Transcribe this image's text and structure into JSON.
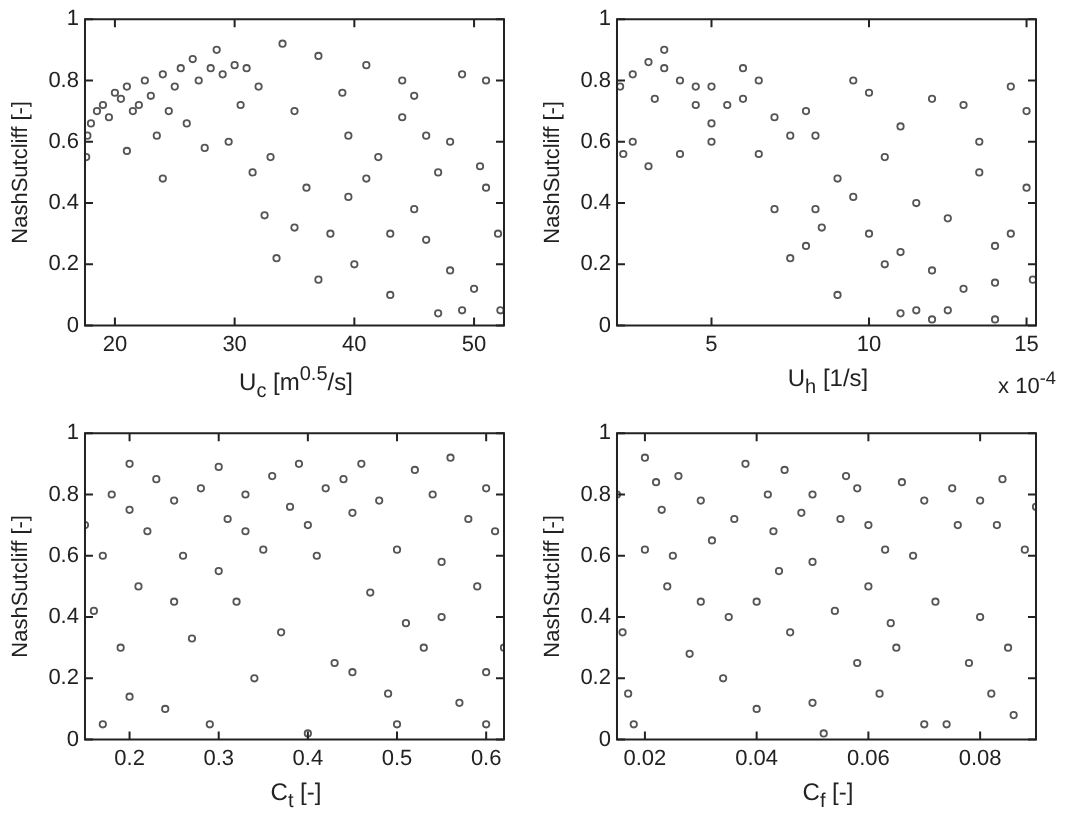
{
  "chart_data": [
    {
      "type": "scatter",
      "xlabel": "U$_{c}$ [m$^{0.5}$/s]",
      "ylabel": "NashSutcliff [-]",
      "xlim": [
        17.5,
        52.5
      ],
      "xticks": [
        20,
        30,
        40,
        50
      ],
      "ylim": [
        0,
        1
      ],
      "yticks": [
        0,
        0.2,
        0.4,
        0.6,
        0.8,
        1
      ],
      "grid": false,
      "legend": false,
      "marker": "circle",
      "series": [
        {
          "color": "#555555",
          "x": [
            17.6,
            17.7,
            18,
            18.5,
            19,
            19.5,
            20,
            20.5,
            21,
            21.5,
            22,
            22.5,
            23,
            23.5,
            24,
            24.5,
            25,
            25.5,
            26,
            26.5,
            27,
            27.5,
            28,
            28.5,
            29,
            29.5,
            30,
            30.5,
            31,
            31.5,
            32,
            32.5,
            33,
            33.5,
            34,
            35,
            36,
            37,
            38,
            39,
            39.5,
            39.5,
            40,
            41,
            42,
            43,
            44,
            45,
            46,
            47,
            48,
            49,
            50,
            51,
            52,
            21,
            24,
            44,
            48,
            50.5,
            35,
            37,
            41,
            43,
            45,
            47,
            49,
            51,
            52.2,
            46
          ],
          "values": [
            0.55,
            0.62,
            0.66,
            0.7,
            0.72,
            0.68,
            0.76,
            0.74,
            0.78,
            0.7,
            0.72,
            0.8,
            0.75,
            0.62,
            0.82,
            0.7,
            0.78,
            0.84,
            0.66,
            0.87,
            0.8,
            0.58,
            0.84,
            0.9,
            0.82,
            0.6,
            0.85,
            0.72,
            0.84,
            0.5,
            0.78,
            0.36,
            0.55,
            0.22,
            0.92,
            0.7,
            0.45,
            0.88,
            0.3,
            0.76,
            0.62,
            0.42,
            0.2,
            0.85,
            0.55,
            0.1,
            0.68,
            0.38,
            0.28,
            0.04,
            0.6,
            0.82,
            0.12,
            0.45,
            0.3,
            0.57,
            0.48,
            0.8,
            0.18,
            0.52,
            0.32,
            0.15,
            0.48,
            0.3,
            0.75,
            0.5,
            0.05,
            0.8,
            0.05,
            0.62
          ]
        }
      ]
    },
    {
      "type": "scatter",
      "xlabel": "U$_{h}$ [1/s]",
      "ylabel": "NashSutcliff [-]",
      "annotations": [
        "x 10$^{-4}$"
      ],
      "xlim": [
        2,
        15.3
      ],
      "xticks": [
        5,
        10,
        15
      ],
      "ylim": [
        0,
        1
      ],
      "yticks": [
        0,
        0.2,
        0.4,
        0.6,
        0.8,
        1
      ],
      "grid": false,
      "legend": false,
      "marker": "circle",
      "series": [
        {
          "color": "#555555",
          "x": [
            2.1,
            2.5,
            3,
            3,
            3.5,
            4,
            4.5,
            5,
            5,
            5.5,
            6,
            6.5,
            7,
            7.5,
            8,
            8.3,
            8.3,
            8.5,
            9,
            9.5,
            10,
            10.5,
            11,
            11.5,
            12,
            12.5,
            13,
            13.5,
            14,
            14.5,
            15,
            15.2,
            2.5,
            3.5,
            4,
            5,
            6,
            7,
            8,
            9,
            10,
            11,
            12,
            13,
            14,
            15,
            9.5,
            10.5,
            11.5,
            12.5,
            13.5,
            14.5,
            7.5,
            6.5,
            4.5,
            2.2,
            3.2,
            11,
            12,
            14
          ],
          "values": [
            0.78,
            0.82,
            0.86,
            0.52,
            0.84,
            0.8,
            0.78,
            0.78,
            0.6,
            0.72,
            0.74,
            0.56,
            0.68,
            0.62,
            0.7,
            0.62,
            0.38,
            0.32,
            0.48,
            0.42,
            0.76,
            0.2,
            0.65,
            0.05,
            0.74,
            0.35,
            0.12,
            0.6,
            0.26,
            0.78,
            0.45,
            0.15,
            0.6,
            0.9,
            0.56,
            0.66,
            0.84,
            0.38,
            0.26,
            0.1,
            0.3,
            0.24,
            0.02,
            0.72,
            0.14,
            0.7,
            0.8,
            0.55,
            0.4,
            0.05,
            0.5,
            0.3,
            0.22,
            0.8,
            0.72,
            0.56,
            0.74,
            0.04,
            0.18,
            0.02
          ]
        }
      ]
    },
    {
      "type": "scatter",
      "xlabel": "C$_{t}$ [-]",
      "ylabel": "NashSutcliff [-]",
      "xlim": [
        0.15,
        0.62
      ],
      "xticks": [
        0.2,
        0.3,
        0.4,
        0.5,
        0.6
      ],
      "ylim": [
        0,
        1
      ],
      "yticks": [
        0,
        0.2,
        0.4,
        0.6,
        0.8,
        1
      ],
      "grid": false,
      "legend": false,
      "marker": "circle",
      "series": [
        {
          "color": "#555555",
          "x": [
            0.15,
            0.16,
            0.17,
            0.18,
            0.19,
            0.2,
            0.2,
            0.2,
            0.21,
            0.22,
            0.23,
            0.24,
            0.25,
            0.26,
            0.27,
            0.28,
            0.29,
            0.3,
            0.3,
            0.31,
            0.32,
            0.33,
            0.34,
            0.35,
            0.36,
            0.37,
            0.38,
            0.39,
            0.4,
            0.4,
            0.41,
            0.42,
            0.43,
            0.44,
            0.45,
            0.46,
            0.47,
            0.48,
            0.49,
            0.5,
            0.5,
            0.51,
            0.52,
            0.53,
            0.54,
            0.55,
            0.56,
            0.57,
            0.58,
            0.59,
            0.6,
            0.6,
            0.61,
            0.62,
            0.17,
            0.25,
            0.33,
            0.45,
            0.55,
            0.6
          ],
          "values": [
            0.7,
            0.42,
            0.05,
            0.8,
            0.3,
            0.9,
            0.75,
            0.14,
            0.5,
            0.68,
            0.85,
            0.1,
            0.78,
            0.6,
            0.33,
            0.82,
            0.05,
            0.89,
            0.55,
            0.72,
            0.45,
            0.8,
            0.2,
            0.62,
            0.86,
            0.35,
            0.76,
            0.9,
            0.02,
            0.7,
            0.6,
            0.82,
            0.25,
            0.85,
            0.22,
            0.9,
            0.48,
            0.78,
            0.15,
            0.62,
            0.05,
            0.38,
            0.88,
            0.3,
            0.8,
            0.58,
            0.92,
            0.12,
            0.72,
            0.5,
            0.82,
            0.22,
            0.68,
            0.3,
            0.6,
            0.45,
            0.68,
            0.74,
            0.4,
            0.05
          ]
        }
      ]
    },
    {
      "type": "scatter",
      "xlabel": "C$_{f}$ [-]",
      "ylabel": "NashSutcliff [-]",
      "xlim": [
        0.015,
        0.09
      ],
      "xticks": [
        0.02,
        0.04,
        0.06,
        0.08
      ],
      "ylim": [
        0,
        1
      ],
      "yticks": [
        0,
        0.2,
        0.4,
        0.6,
        0.8,
        1
      ],
      "grid": false,
      "legend": false,
      "marker": "circle",
      "series": [
        {
          "color": "#555555",
          "x": [
            0.015,
            0.016,
            0.018,
            0.02,
            0.02,
            0.022,
            0.024,
            0.026,
            0.028,
            0.03,
            0.032,
            0.034,
            0.036,
            0.038,
            0.04,
            0.04,
            0.042,
            0.044,
            0.046,
            0.048,
            0.05,
            0.05,
            0.052,
            0.054,
            0.056,
            0.058,
            0.06,
            0.06,
            0.062,
            0.064,
            0.066,
            0.068,
            0.07,
            0.072,
            0.074,
            0.076,
            0.078,
            0.08,
            0.08,
            0.082,
            0.084,
            0.086,
            0.088,
            0.09,
            0.025,
            0.035,
            0.045,
            0.055,
            0.065,
            0.075,
            0.017,
            0.03,
            0.05,
            0.07,
            0.085,
            0.023,
            0.043,
            0.063,
            0.083,
            0.058
          ],
          "values": [
            0.8,
            0.35,
            0.05,
            0.62,
            0.92,
            0.84,
            0.5,
            0.86,
            0.28,
            0.78,
            0.65,
            0.2,
            0.72,
            0.9,
            0.45,
            0.1,
            0.8,
            0.55,
            0.35,
            0.74,
            0.8,
            0.58,
            0.02,
            0.42,
            0.86,
            0.25,
            0.5,
            0.7,
            0.15,
            0.38,
            0.84,
            0.6,
            0.78,
            0.45,
            0.05,
            0.7,
            0.25,
            0.78,
            0.4,
            0.15,
            0.85,
            0.08,
            0.62,
            0.76,
            0.6,
            0.4,
            0.88,
            0.72,
            0.3,
            0.82,
            0.15,
            0.45,
            0.12,
            0.05,
            0.3,
            0.75,
            0.68,
            0.62,
            0.7,
            0.82
          ]
        }
      ]
    }
  ]
}
